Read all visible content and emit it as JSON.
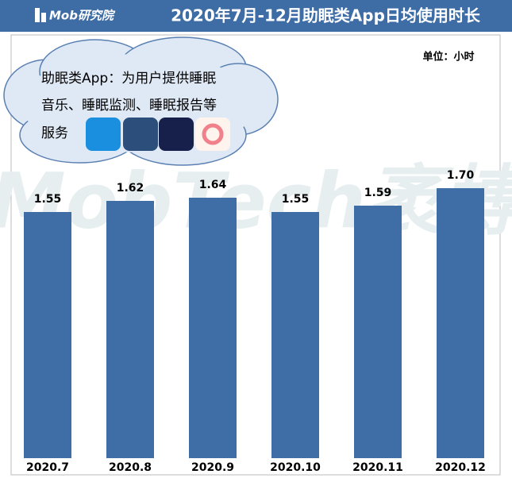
{
  "brand": "Mob研究院",
  "chart_data": {
    "type": "bar",
    "title": "2020年7月-12月助眠类App日均使用时长",
    "unit": "单位：小时",
    "annotation": [
      "助眠类App：为用户提供睡眠",
      "音乐、睡眠监测、睡眠报告等",
      "服务"
    ],
    "watermark": "MobTech袤博",
    "categories": [
      "2020.7",
      "2020.8",
      "2020.9",
      "2020.10",
      "2020.11",
      "2020.12"
    ],
    "values": [
      1.55,
      1.62,
      1.64,
      1.55,
      1.59,
      1.7
    ],
    "value_labels": [
      "1.55",
      "1.62",
      "1.64",
      "1.55",
      "1.59",
      "1.70"
    ],
    "color": "#3f6ea6",
    "ylim": [
      0,
      2
    ]
  }
}
